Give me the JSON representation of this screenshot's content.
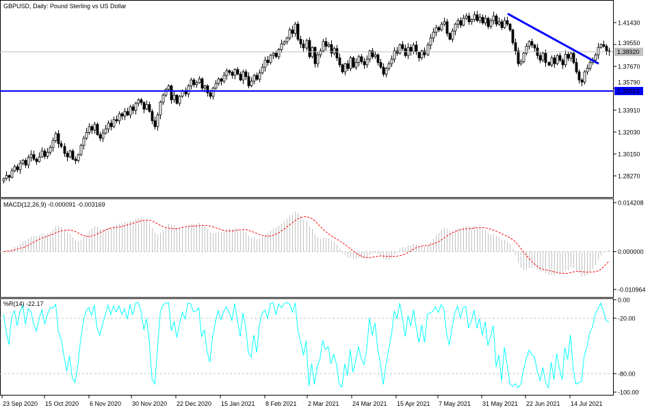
{
  "chart_data": {
    "type": "candlestick",
    "title": "GBPUSD, Daily:  Pound Sterling vs US Dollar",
    "symbol": "GBPUSD",
    "timeframe": "Daily",
    "ylim": [
      1.2695,
      1.4281
    ],
    "y_ticks": [
      "1.41430",
      "1.39550",
      "1.37670",
      "1.35790",
      "1.33910",
      "1.32030",
      "1.30150",
      "1.28270"
    ],
    "x_ticks": [
      "23 Sep 2020",
      "15 Oct 2020",
      "6 Nov 2020",
      "30 Nov 2020",
      "22 Dec 2020",
      "15 Jan 2021",
      "8 Feb 2021",
      "2 Mar 2021",
      "24 Mar 2021",
      "15 Apr 2021",
      "7 May 2021",
      "31 May 2021",
      "22 Jun 2021",
      "14 Jul 2021"
    ],
    "current_price": {
      "value": 1.3892,
      "label": "1.38920",
      "color": "#c0c0c0"
    },
    "support_line": {
      "value": 1.35553,
      "label": "1.35553",
      "color": "#0000ff"
    },
    "trend_line": {
      "from": 1.4219,
      "to": 1.379,
      "color": "#0000ff"
    },
    "bull_color": "#ffffff",
    "bear_color": "#000000",
    "close": [
      1.2804,
      1.283,
      1.2815,
      1.287,
      1.2905,
      1.288,
      1.2935,
      1.296,
      1.292,
      1.2985,
      1.301,
      1.297,
      1.295,
      1.299,
      1.304,
      1.2995,
      1.303,
      1.307,
      1.313,
      1.319,
      1.3104,
      1.308,
      1.302,
      1.299,
      1.304,
      1.297,
      1.2958,
      1.301,
      1.309,
      1.315,
      1.32,
      1.325,
      1.322,
      1.327,
      1.318,
      1.315,
      1.3193,
      1.323,
      1.328,
      1.325,
      1.331,
      1.33,
      1.336,
      1.334,
      1.338,
      1.335,
      1.342,
      1.339,
      1.345,
      1.348,
      1.3457,
      1.34,
      1.344,
      1.338,
      1.33,
      1.325,
      1.335,
      1.346,
      1.352,
      1.357,
      1.36,
      1.348,
      1.352,
      1.345,
      1.351,
      1.356,
      1.353,
      1.36,
      1.365,
      1.361,
      1.3627,
      1.366,
      1.358,
      1.36,
      1.354,
      1.351,
      1.358,
      1.362,
      1.366,
      1.364,
      1.369,
      1.373,
      1.3715,
      1.369,
      1.374,
      1.37,
      1.365,
      1.372,
      1.368,
      1.36,
      1.364,
      1.369,
      1.3656,
      1.371,
      1.376,
      1.382,
      1.38,
      1.3862,
      1.388,
      1.385,
      1.391,
      1.396,
      1.3979,
      1.401,
      1.408,
      1.405,
      1.413,
      1.4,
      1.396,
      1.3925,
      1.399,
      1.385,
      1.393,
      1.379,
      1.3866,
      1.39,
      1.398,
      1.394,
      1.3954,
      1.388,
      1.392,
      1.384,
      1.378,
      1.372,
      1.379,
      1.3749,
      1.384,
      1.376,
      1.38,
      1.385,
      1.3808,
      1.378,
      1.383,
      1.39,
      1.385,
      1.3866,
      1.38,
      1.376,
      1.37,
      1.3749,
      1.379,
      1.383,
      1.39,
      1.388,
      1.3954,
      1.392,
      1.386,
      1.393,
      1.3895,
      1.395,
      1.389,
      1.384,
      1.39,
      1.3866,
      1.395,
      1.401,
      1.406,
      1.41,
      1.408,
      1.413,
      1.415,
      1.405,
      1.4,
      1.4071,
      1.413,
      1.416,
      1.412,
      1.418,
      1.42,
      1.415,
      1.417,
      1.421,
      1.416,
      1.4189,
      1.414,
      1.418,
      1.411,
      1.416,
      1.42,
      1.413,
      1.415,
      1.41,
      1.416,
      1.413,
      1.408,
      1.397,
      1.39,
      1.379,
      1.3808,
      1.388,
      1.394,
      1.398,
      1.395,
      1.3925,
      1.386,
      1.382,
      1.388,
      1.38,
      1.3778,
      1.384,
      1.379,
      1.386,
      1.382,
      1.378,
      1.387,
      1.3837,
      1.388,
      1.38,
      1.372,
      1.365,
      1.3632,
      1.372,
      1.375,
      1.38,
      1.382,
      1.3866,
      1.393,
      1.3954,
      1.394,
      1.39,
      1.3892
    ],
    "macd": {
      "label": "MACD(12,26,9) -0.000091 -0.003169",
      "ylim": [
        -0.010964,
        0.014208
      ],
      "y_ticks": [
        "0.014208",
        "0.000000",
        "-0.010964"
      ],
      "histogram_color": "#c0c0c0",
      "signal_color": "#ff0000"
    },
    "williams_r": {
      "label": "%R(14) -22.17",
      "ylim": [
        -100,
        0
      ],
      "y_ticks": [
        "0.00",
        "-20.00",
        "-80.00",
        "-100.00"
      ],
      "levels": [
        -20,
        -80
      ],
      "color": "#00ffff"
    }
  }
}
